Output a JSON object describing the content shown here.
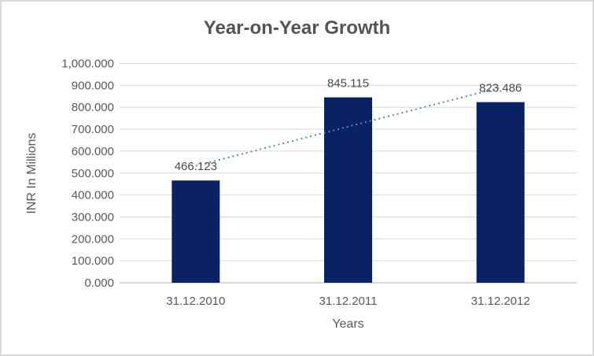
{
  "chart_data": {
    "type": "bar",
    "title": "Year-on-Year Growth",
    "xlabel": "Years",
    "ylabel": "INR In Millions",
    "categories": [
      "31.12.2010",
      "31.12.2011",
      "31.12.2012"
    ],
    "values": [
      466.123,
      845.115,
      823.486
    ],
    "data_labels": [
      "466.123",
      "845.115",
      "823.486"
    ],
    "ylim": [
      0,
      1000
    ],
    "ytick_step": 100,
    "ytick_labels": [
      "0.000",
      "100.000",
      "200.000",
      "300.000",
      "400.000",
      "500.000",
      "600.000",
      "700.000",
      "800.000",
      "900.000",
      "1,000.000"
    ],
    "grid": true,
    "legend": "none",
    "trendline": {
      "type": "linear",
      "style": "dotted",
      "color": "#5089c9"
    },
    "colors": {
      "bar": "#0a2264",
      "grid": "#d9d9d9",
      "axis_line": "#c0c0c0",
      "tick_text": "#595959",
      "data_label_text": "#4a4a4a",
      "title_text": "#545454",
      "border": "#d9d9d9",
      "background": "#ffffff"
    }
  }
}
